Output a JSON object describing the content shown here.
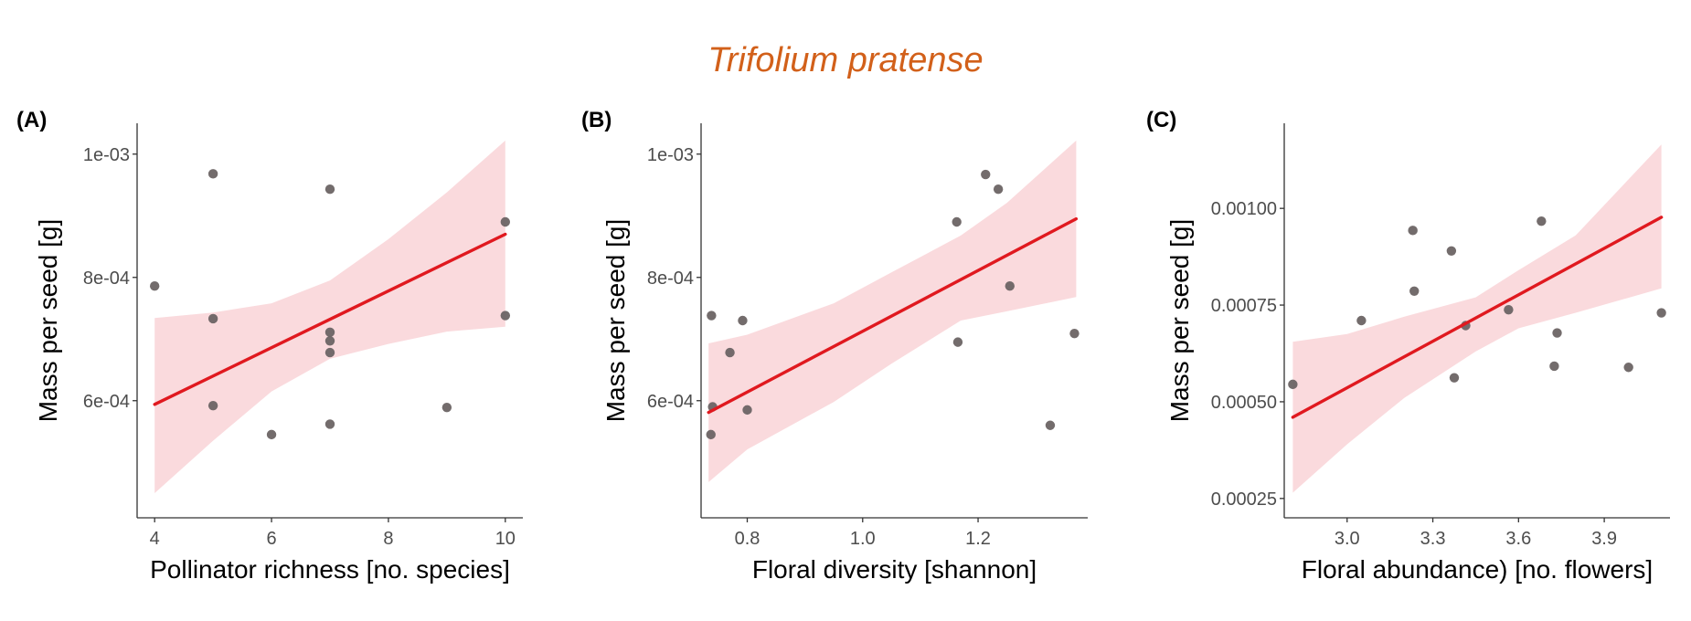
{
  "title": "Trifolium pratense",
  "colors": {
    "title": "#d2601a",
    "line": "#e0191f",
    "band": "#fadadd",
    "point": "#6b6464"
  },
  "chart_data": [
    {
      "type": "scatter",
      "panel_label": "(A)",
      "xlabel": "Pollinator richness [no. species]",
      "ylabel": "Mass per seed [g]",
      "xlim": [
        3.7,
        10.3
      ],
      "ylim": [
        0.00041,
        0.00105
      ],
      "xticks": [
        4,
        6,
        8,
        10
      ],
      "xtick_labels": [
        "4",
        "6",
        "8",
        "10"
      ],
      "yticks": [
        0.0006,
        0.0008,
        0.001
      ],
      "ytick_labels": [
        "6e-04",
        "8e-04",
        "1e-03"
      ],
      "points": [
        {
          "x": 4,
          "y": 0.000786
        },
        {
          "x": 5,
          "y": 0.000968
        },
        {
          "x": 5,
          "y": 0.000733
        },
        {
          "x": 5,
          "y": 0.000592
        },
        {
          "x": 6,
          "y": 0.000545
        },
        {
          "x": 7,
          "y": 0.000943
        },
        {
          "x": 7,
          "y": 0.000711
        },
        {
          "x": 7,
          "y": 0.000697
        },
        {
          "x": 7,
          "y": 0.000678
        },
        {
          "x": 7,
          "y": 0.000562
        },
        {
          "x": 9,
          "y": 0.000589
        },
        {
          "x": 10,
          "y": 0.00089
        },
        {
          "x": 10,
          "y": 0.000738
        }
      ],
      "fit": {
        "x": [
          4,
          10
        ],
        "y": [
          0.000594,
          0.00087
        ]
      },
      "band": {
        "x": [
          4,
          5,
          6,
          7,
          8,
          9,
          10
        ],
        "lower": [
          0.00045,
          0.000535,
          0.000615,
          0.000668,
          0.000692,
          0.000712,
          0.00072
        ],
        "upper": [
          0.000734,
          0.000743,
          0.000758,
          0.000795,
          0.000862,
          0.000938,
          0.001022
        ]
      }
    },
    {
      "type": "scatter",
      "panel_label": "(B)",
      "xlabel": "Floral diversity [shannon]",
      "ylabel": "Mass per seed [g]",
      "xlim": [
        0.72,
        1.39
      ],
      "ylim": [
        0.00041,
        0.00105
      ],
      "xticks": [
        0.8,
        1.0,
        1.2
      ],
      "xtick_labels": [
        "0.8",
        "1.0",
        "1.2"
      ],
      "yticks": [
        0.0006,
        0.0008,
        0.001
      ],
      "ytick_labels": [
        "6e-04",
        "8e-04",
        "1e-03"
      ],
      "points": [
        {
          "x": 0.738,
          "y": 0.000738
        },
        {
          "x": 0.74,
          "y": 0.00059
        },
        {
          "x": 0.737,
          "y": 0.000545
        },
        {
          "x": 0.77,
          "y": 0.000678
        },
        {
          "x": 0.792,
          "y": 0.00073
        },
        {
          "x": 0.8,
          "y": 0.000585
        },
        {
          "x": 1.163,
          "y": 0.00089
        },
        {
          "x": 1.165,
          "y": 0.000695
        },
        {
          "x": 1.213,
          "y": 0.000967
        },
        {
          "x": 1.235,
          "y": 0.000943
        },
        {
          "x": 1.255,
          "y": 0.000786
        },
        {
          "x": 1.325,
          "y": 0.00056
        },
        {
          "x": 1.367,
          "y": 0.000709
        }
      ],
      "fit": {
        "x": [
          0.733,
          1.37
        ],
        "y": [
          0.000581,
          0.000895
        ]
      },
      "band": {
        "x": [
          0.733,
          0.8,
          0.95,
          1.05,
          1.17,
          1.25,
          1.37
        ],
        "lower": [
          0.000468,
          0.000521,
          0.000598,
          0.00066,
          0.00073,
          0.000745,
          0.000768
        ],
        "upper": [
          0.000693,
          0.000707,
          0.000758,
          0.000808,
          0.000868,
          0.000921,
          0.001022
        ]
      }
    },
    {
      "type": "scatter",
      "panel_label": "(C)",
      "xlabel": "Floral abundance) [no. flowers]",
      "ylabel": "Mass per seed [g]",
      "xlim": [
        2.78,
        4.13
      ],
      "ylim": [
        0.0002,
        0.00122
      ],
      "xticks": [
        3.0,
        3.3,
        3.6,
        3.9
      ],
      "xtick_labels": [
        "3.0",
        "3.3",
        "3.6",
        "3.9"
      ],
      "yticks": [
        0.00025,
        0.0005,
        0.00075,
        0.001
      ],
      "ytick_labels": [
        "0.00025",
        "0.00050",
        "0.00075",
        "0.00100"
      ],
      "points": [
        {
          "x": 2.81,
          "y": 0.000545
        },
        {
          "x": 3.05,
          "y": 0.00071
        },
        {
          "x": 3.23,
          "y": 0.000943
        },
        {
          "x": 3.235,
          "y": 0.000786
        },
        {
          "x": 3.365,
          "y": 0.00089
        },
        {
          "x": 3.375,
          "y": 0.000562
        },
        {
          "x": 3.415,
          "y": 0.000697
        },
        {
          "x": 3.565,
          "y": 0.000738
        },
        {
          "x": 3.68,
          "y": 0.000967
        },
        {
          "x": 3.725,
          "y": 0.000592
        },
        {
          "x": 3.735,
          "y": 0.000678
        },
        {
          "x": 3.985,
          "y": 0.000589
        },
        {
          "x": 4.1,
          "y": 0.00073
        }
      ],
      "fit": {
        "x": [
          2.81,
          4.1
        ],
        "y": [
          0.00046,
          0.000977
        ]
      },
      "band": {
        "x": [
          2.81,
          3.0,
          3.2,
          3.45,
          3.6,
          3.8,
          4.1
        ],
        "lower": [
          0.000265,
          0.00039,
          0.00051,
          0.00063,
          0.00069,
          0.00073,
          0.000793
        ],
        "upper": [
          0.000655,
          0.000675,
          0.00072,
          0.00077,
          0.00084,
          0.00093,
          0.001165
        ]
      }
    }
  ]
}
